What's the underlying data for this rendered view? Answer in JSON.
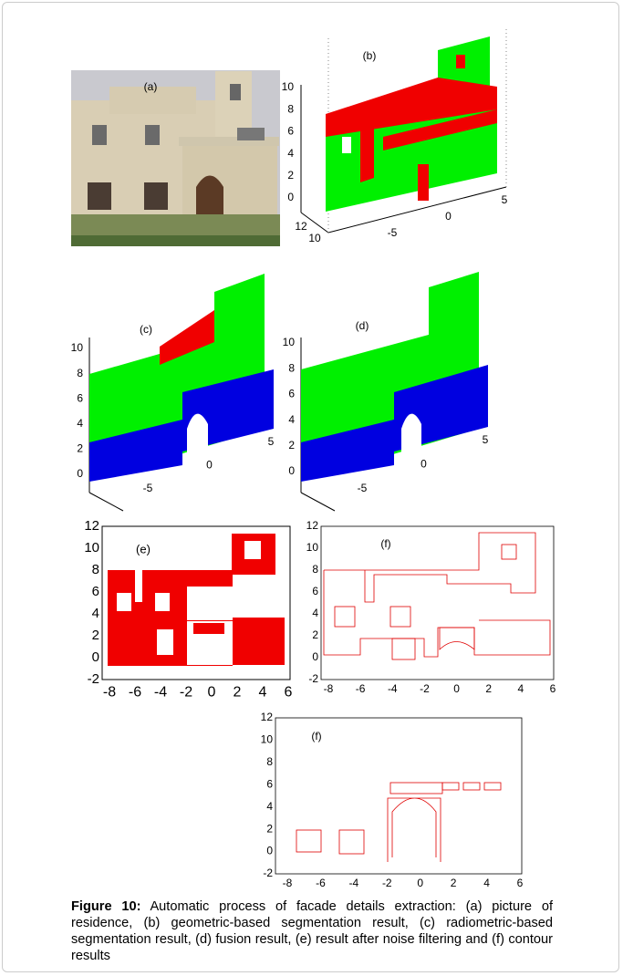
{
  "panels": [
    {
      "label": "(a)"
    },
    {
      "label": "(b)",
      "zticks": [
        0,
        2,
        4,
        6,
        8,
        10
      ],
      "xticks": [
        -5,
        0,
        5
      ],
      "yticks": [
        10,
        12
      ]
    },
    {
      "label": "(c)",
      "zticks": [
        0,
        2,
        4,
        6,
        8,
        10
      ],
      "xticks": [
        -5,
        0,
        5
      ]
    },
    {
      "label": "(d)",
      "zticks": [
        0,
        2,
        4,
        6,
        8,
        10
      ],
      "xticks": [
        -5,
        0,
        5
      ]
    },
    {
      "label": "(e)",
      "yticks": [
        -2,
        0,
        2,
        4,
        6,
        8,
        10,
        12
      ],
      "xticks": [
        -8,
        -6,
        -4,
        -2,
        0,
        2,
        4,
        6
      ]
    },
    {
      "label": "(f)",
      "yticks": [
        -2,
        0,
        2,
        4,
        6,
        8,
        10,
        12
      ],
      "xticks": [
        -8,
        -6,
        -4,
        -2,
        0,
        2,
        4,
        6
      ]
    },
    {
      "label": "(f)",
      "yticks": [
        -2,
        0,
        2,
        4,
        6,
        8,
        10,
        12
      ],
      "xticks": [
        -8,
        -6,
        -4,
        -2,
        0,
        2,
        4,
        6
      ]
    }
  ],
  "caption": {
    "label": "Figure 10:",
    "text": "Automatic process of facade details extraction: (a) picture of residence, (b) geometric-based segmentation result, (c) radiometric-based segmentation result, (d) fusion result, (e) result after noise filtering and (f) contour results"
  }
}
